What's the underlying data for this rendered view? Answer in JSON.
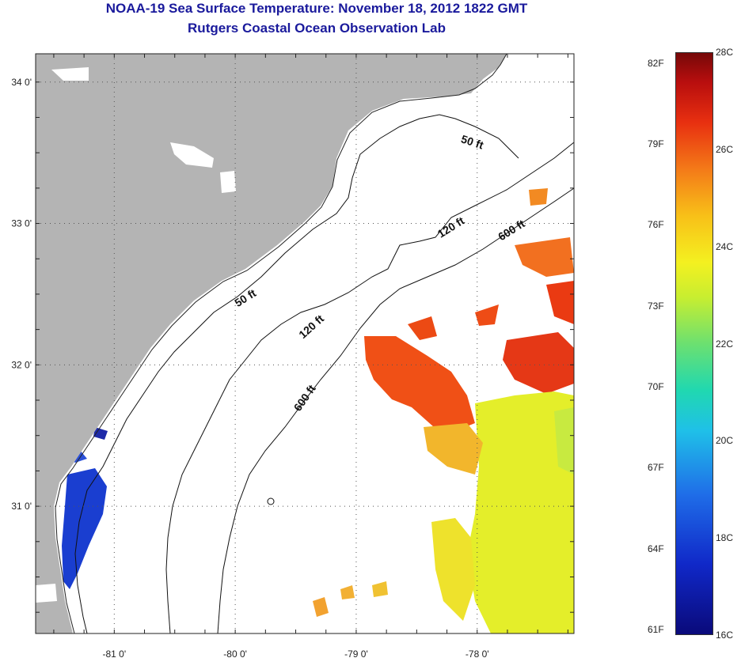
{
  "title": {
    "line1": "NOAA-19 Sea Surface Temperature:  November 18, 2012 1822 GMT",
    "line2": "Rutgers Coastal Ocean Observation Lab"
  },
  "map": {
    "lon_range": [
      -81.65,
      -77.2
    ],
    "lat_range": [
      30.1,
      34.2
    ],
    "lon_ticks": [
      {
        "value": -81,
        "label": "-81 0'"
      },
      {
        "value": -80,
        "label": "-80 0'"
      },
      {
        "value": -79,
        "label": "-79 0'"
      },
      {
        "value": -78,
        "label": "-78 0'"
      }
    ],
    "lat_ticks": [
      {
        "value": 34,
        "label": "34 0'"
      },
      {
        "value": 33,
        "label": "33 0'"
      },
      {
        "value": 32,
        "label": "32 0'"
      },
      {
        "value": 31,
        "label": "31 0'"
      }
    ],
    "colors": {
      "land": "#b4b4b4",
      "ocean": "#ffffff"
    },
    "contour_labels": [
      {
        "text": "50 ft",
        "lon": -78.05,
        "lat": 33.55,
        "angle": 18
      },
      {
        "text": "120 ft",
        "lon": -78.2,
        "lat": 32.95,
        "angle": -32
      },
      {
        "text": "600 ft",
        "lon": -77.7,
        "lat": 32.93,
        "angle": -32
      },
      {
        "text": "50 ft",
        "lon": -79.9,
        "lat": 32.45,
        "angle": -32
      },
      {
        "text": "120 ft",
        "lon": -79.35,
        "lat": 32.25,
        "angle": -42
      },
      {
        "text": "600 ft",
        "lon": -79.4,
        "lat": 31.75,
        "angle": -55
      }
    ]
  },
  "colorbar": {
    "fahrenheit_labels": [
      {
        "value": 61,
        "label": "61F"
      },
      {
        "value": 64,
        "label": "64F"
      },
      {
        "value": 67,
        "label": "67F"
      },
      {
        "value": 70,
        "label": "70F"
      },
      {
        "value": 73,
        "label": "73F"
      },
      {
        "value": 76,
        "label": "76F"
      },
      {
        "value": 79,
        "label": "79F"
      },
      {
        "value": 82,
        "label": "82F"
      }
    ],
    "celsius_labels": [
      {
        "value": 16,
        "label": "16C"
      },
      {
        "value": 18,
        "label": "18C"
      },
      {
        "value": 20,
        "label": "20C"
      },
      {
        "value": 22,
        "label": "22C"
      },
      {
        "value": 24,
        "label": "24C"
      },
      {
        "value": 26,
        "label": "26C"
      },
      {
        "value": 28,
        "label": "28C"
      }
    ],
    "min_c": 16,
    "max_c": 28
  }
}
